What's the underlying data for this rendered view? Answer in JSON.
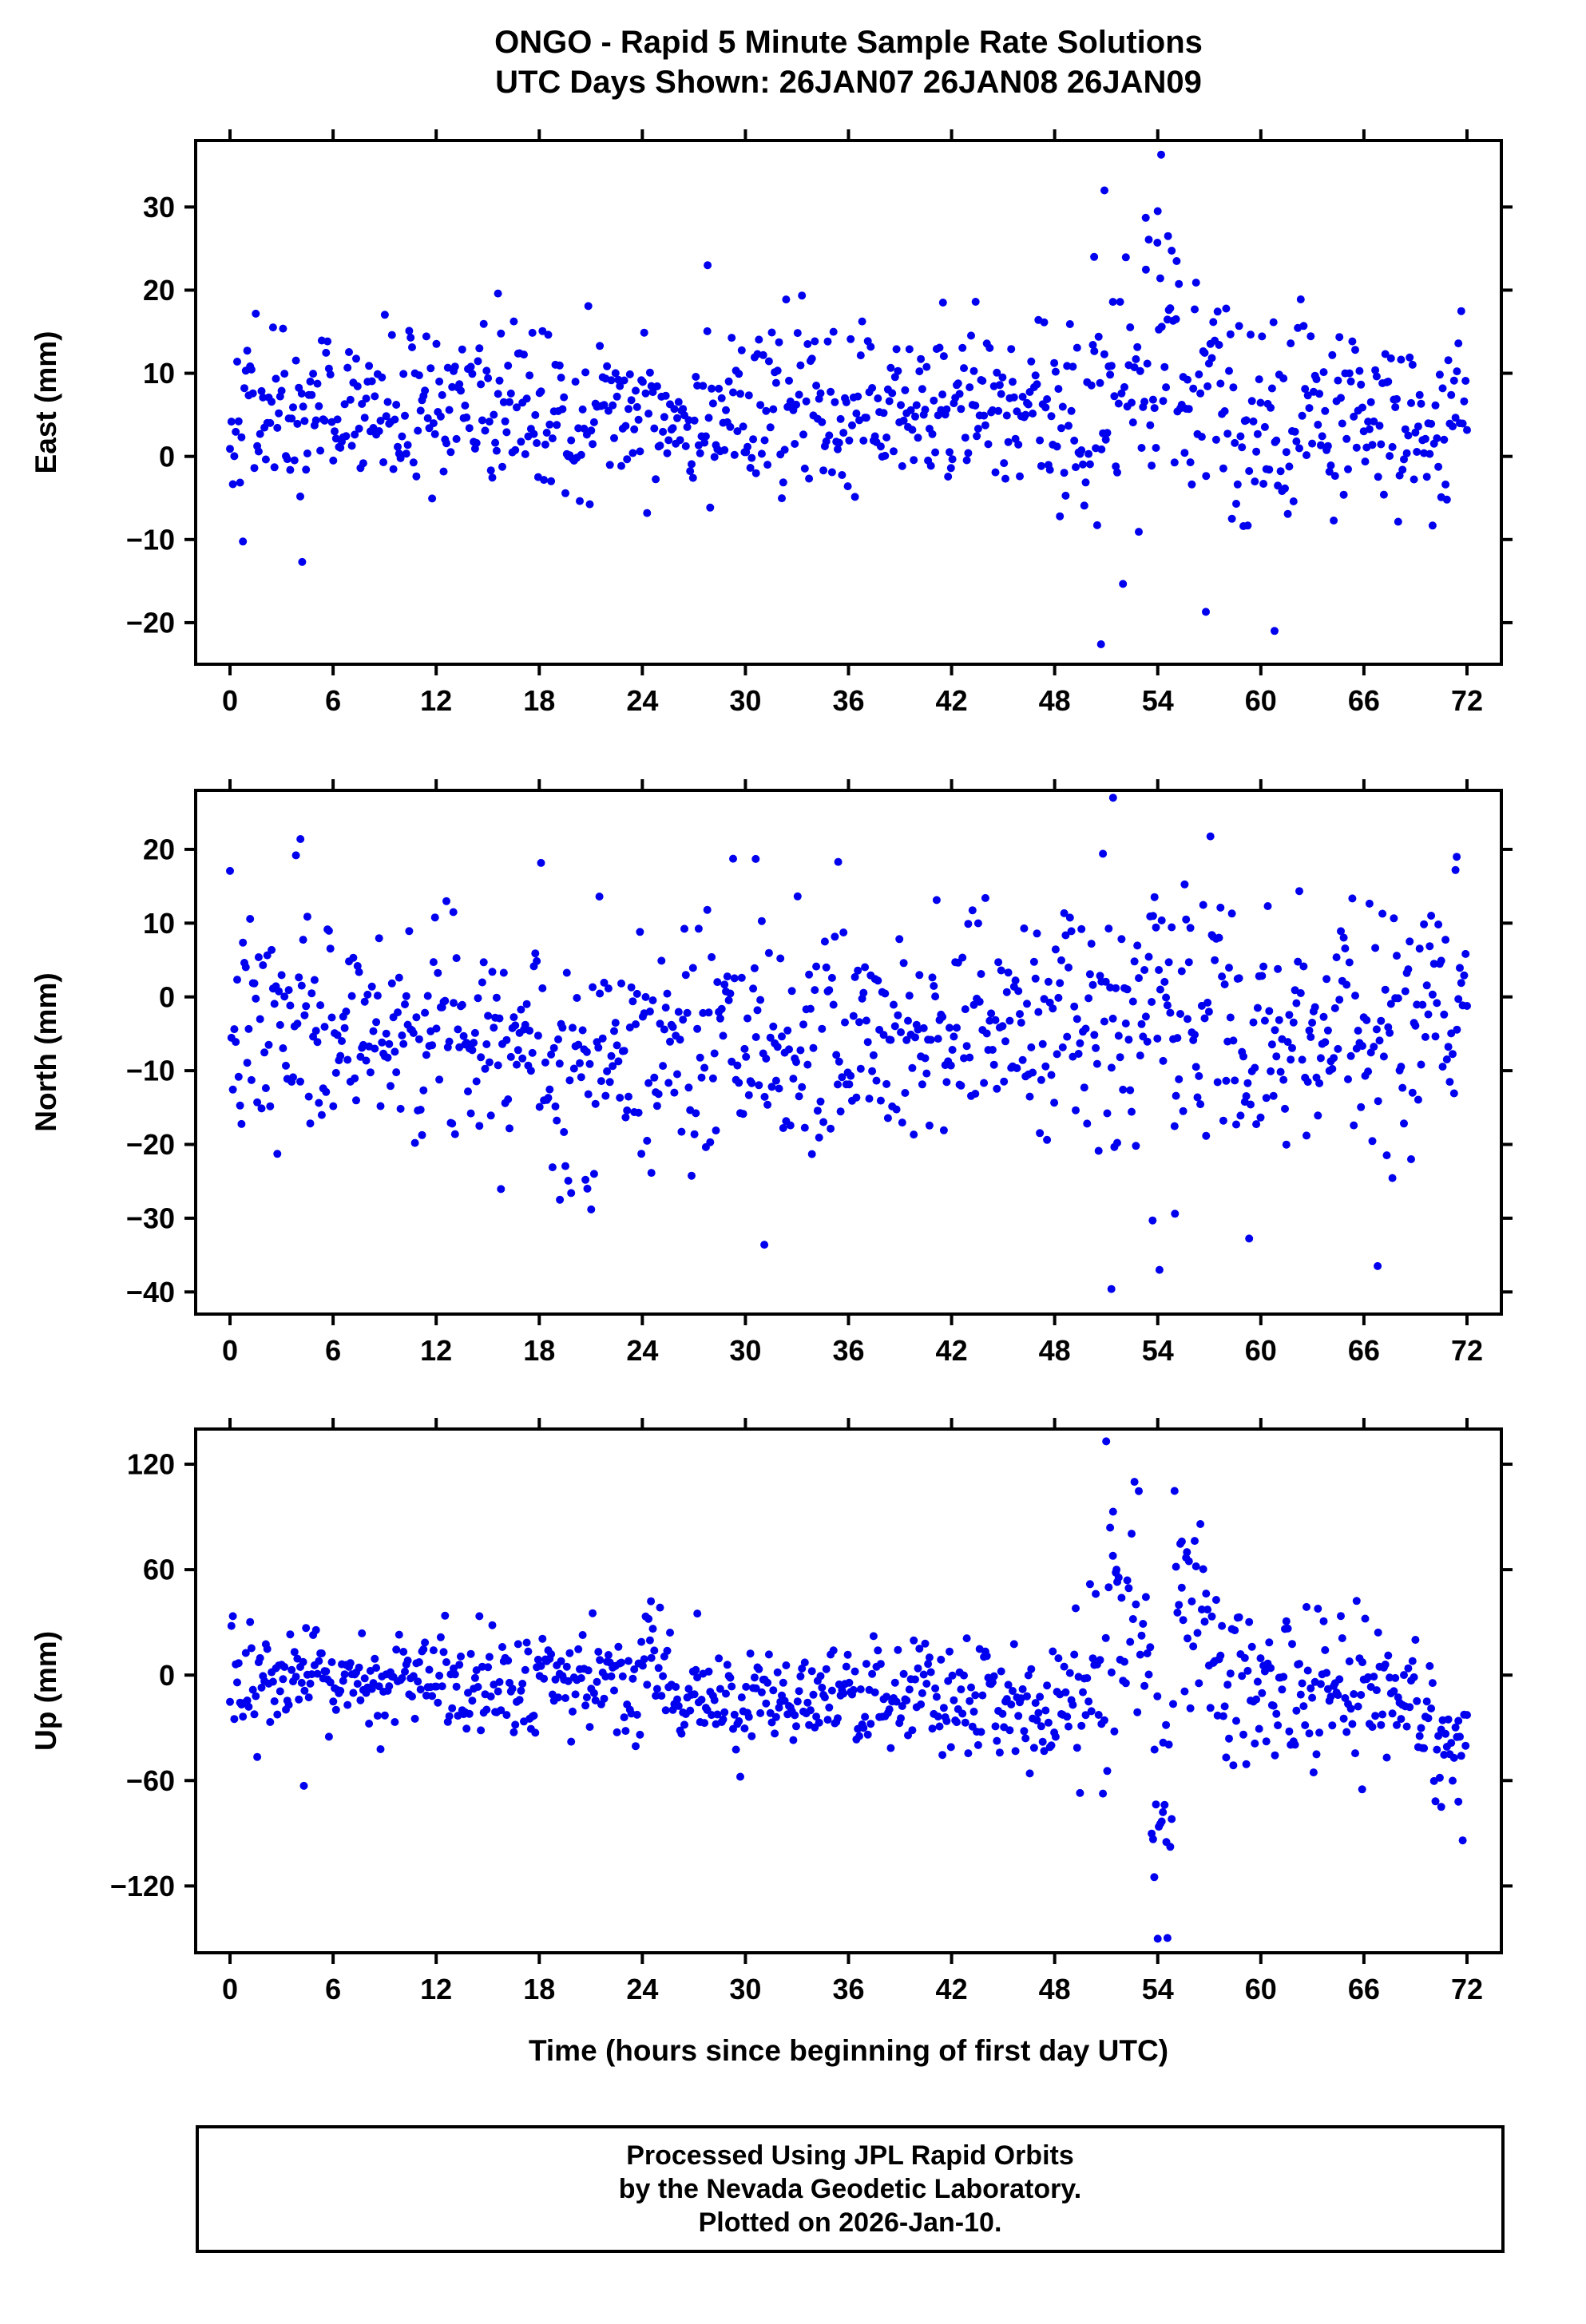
{
  "title": {
    "line1": "ONGO - Rapid 5 Minute Sample Rate Solutions",
    "line2": "UTC Days Shown:  26JAN07 26JAN08 26JAN09"
  },
  "xlabel": "Time (hours since beginning of first day UTC)",
  "footer": {
    "line1": "Processed Using JPL Rapid Orbits",
    "line2": "by the Nevada Geodetic Laboratory.",
    "line3": "Plotted on 2026-Jan-10."
  },
  "style": {
    "point_color": "#0000EE",
    "frame_color": "#000000"
  },
  "chart_data": [
    {
      "type": "scatter",
      "name": "east-component",
      "ylabel": "East (mm)",
      "xlim": [
        -2,
        74
      ],
      "ylim": [
        -25,
        38
      ],
      "xticks": [
        0,
        6,
        12,
        18,
        24,
        30,
        36,
        42,
        48,
        54,
        60,
        66,
        72
      ],
      "yticks": [
        -20,
        -10,
        0,
        10,
        20,
        30
      ],
      "grid": false,
      "legend": "none",
      "seed": 42,
      "gen": {
        "n": 864,
        "clamp": [
          -23,
          36
        ],
        "segments": [
          {
            "x": [
              0,
              16
            ],
            "mean": 5.5,
            "std": 4.8
          },
          {
            "x": [
              16,
              18
            ],
            "mean": 5.0,
            "std": 6.5
          },
          {
            "x": [
              18,
              48
            ],
            "mean": 5.5,
            "std": 4.8
          },
          {
            "x": [
              48,
              50
            ],
            "mean": 4.0,
            "std": 6.0
          },
          {
            "x": [
              50,
              58
            ],
            "mean": 8.0,
            "std": 8.0
          },
          {
            "x": [
              58,
              62
            ],
            "mean": 2.0,
            "std": 7.5
          },
          {
            "x": [
              62,
              72.1
            ],
            "mean": 4.0,
            "std": 5.5
          }
        ]
      },
      "outliers": [
        [
          50.9,
          32
        ],
        [
          54.2,
          36.3
        ],
        [
          50.7,
          -22.6
        ],
        [
          53.3,
          28.7
        ],
        [
          54.0,
          29.5
        ],
        [
          54.6,
          26.5
        ],
        [
          55.1,
          23.5
        ],
        [
          50.3,
          24
        ],
        [
          60.8,
          -21
        ],
        [
          4.2,
          -12.7
        ],
        [
          56.8,
          -18.7
        ],
        [
          27.8,
          23
        ],
        [
          41.5,
          18.5
        ],
        [
          43.4,
          18.6
        ],
        [
          15.6,
          19.6
        ]
      ]
    },
    {
      "type": "scatter",
      "name": "north-component",
      "ylabel": "North (mm)",
      "xlim": [
        -2,
        74
      ],
      "ylim": [
        -43,
        28
      ],
      "xticks": [
        0,
        6,
        12,
        18,
        24,
        30,
        36,
        42,
        48,
        54,
        60,
        66,
        72
      ],
      "yticks": [
        -40,
        -30,
        -20,
        -10,
        0,
        10,
        20
      ],
      "grid": false,
      "legend": "none",
      "seed": 7,
      "gen": {
        "n": 864,
        "clamp": [
          -34,
          22
        ],
        "segments": [
          {
            "x": [
              0,
              5
            ],
            "mean": -5.0,
            "std": 8.0
          },
          {
            "x": [
              5,
              18
            ],
            "mean": -4.0,
            "std": 7.0
          },
          {
            "x": [
              18,
              24
            ],
            "mean": -8.0,
            "std": 8.0
          },
          {
            "x": [
              24,
              36
            ],
            "mean": -7.0,
            "std": 8.0
          },
          {
            "x": [
              36,
              48
            ],
            "mean": -4.0,
            "std": 7.0
          },
          {
            "x": [
              48,
              58
            ],
            "mean": -2.0,
            "std": 9.0
          },
          {
            "x": [
              58,
              72.1
            ],
            "mean": -4.0,
            "std": 8.0
          }
        ]
      },
      "outliers": [
        [
          4.1,
          21.4
        ],
        [
          51.4,
          27
        ],
        [
          51.3,
          -39.6
        ],
        [
          54.1,
          -37
        ],
        [
          66.8,
          -36.5
        ],
        [
          31.1,
          -33.6
        ],
        [
          30.6,
          18.7
        ],
        [
          35.4,
          18.3
        ],
        [
          71.4,
          19
        ],
        [
          20.8,
          -26
        ],
        [
          19.2,
          -27.5
        ],
        [
          53.7,
          -30.3
        ],
        [
          55.0,
          -29.4
        ],
        [
          13.0,
          11.5
        ],
        [
          21.5,
          13.6
        ]
      ]
    },
    {
      "type": "scatter",
      "name": "up-component",
      "ylabel": "Up (mm)",
      "xlim": [
        -2,
        74
      ],
      "ylim": [
        -158,
        140
      ],
      "xticks": [
        0,
        6,
        12,
        18,
        24,
        30,
        36,
        42,
        48,
        54,
        60,
        66,
        72
      ],
      "yticks": [
        -120,
        -60,
        0,
        60,
        120
      ],
      "grid": false,
      "legend": "none",
      "seed": 13,
      "gen": {
        "n": 864,
        "clamp": [
          -150,
          134
        ],
        "segments": [
          {
            "x": [
              0,
              24
            ],
            "mean": -5.0,
            "std": 15.0
          },
          {
            "x": [
              24,
              26
            ],
            "mean": 5.0,
            "std": 20.0
          },
          {
            "x": [
              26,
              48
            ],
            "mean": -15.0,
            "std": 16.0
          },
          {
            "x": [
              48,
              50
            ],
            "mean": -12.0,
            "std": 18.0
          },
          {
            "x": [
              50,
              53
            ],
            "mean": 10.0,
            "std": 42.0
          },
          {
            "x": [
              53,
              55
            ],
            "mean": -25.0,
            "std": 55.0
          },
          {
            "x": [
              55,
              57
            ],
            "mean": 38.0,
            "std": 22.0
          },
          {
            "x": [
              57,
              59
            ],
            "mean": 0.0,
            "std": 25.0
          },
          {
            "x": [
              59,
              66
            ],
            "mean": -8.0,
            "std": 20.0
          },
          {
            "x": [
              66,
              70
            ],
            "mean": -15.0,
            "std": 18.0
          },
          {
            "x": [
              70,
              72.1
            ],
            "mean": -35.0,
            "std": 15.0
          }
        ]
      },
      "outliers": [
        [
          51.0,
          133
        ],
        [
          54.0,
          -150
        ],
        [
          51.4,
          93
        ],
        [
          51.6,
          60
        ],
        [
          55.4,
          76
        ],
        [
          55.7,
          70
        ],
        [
          54.5,
          -95
        ],
        [
          54.3,
          -78
        ],
        [
          53.8,
          -115
        ],
        [
          4.3,
          -63
        ],
        [
          24.5,
          42
        ],
        [
          27.2,
          35
        ],
        [
          65.9,
          -65
        ],
        [
          70.5,
          -75
        ],
        [
          71.5,
          -72
        ]
      ]
    }
  ]
}
